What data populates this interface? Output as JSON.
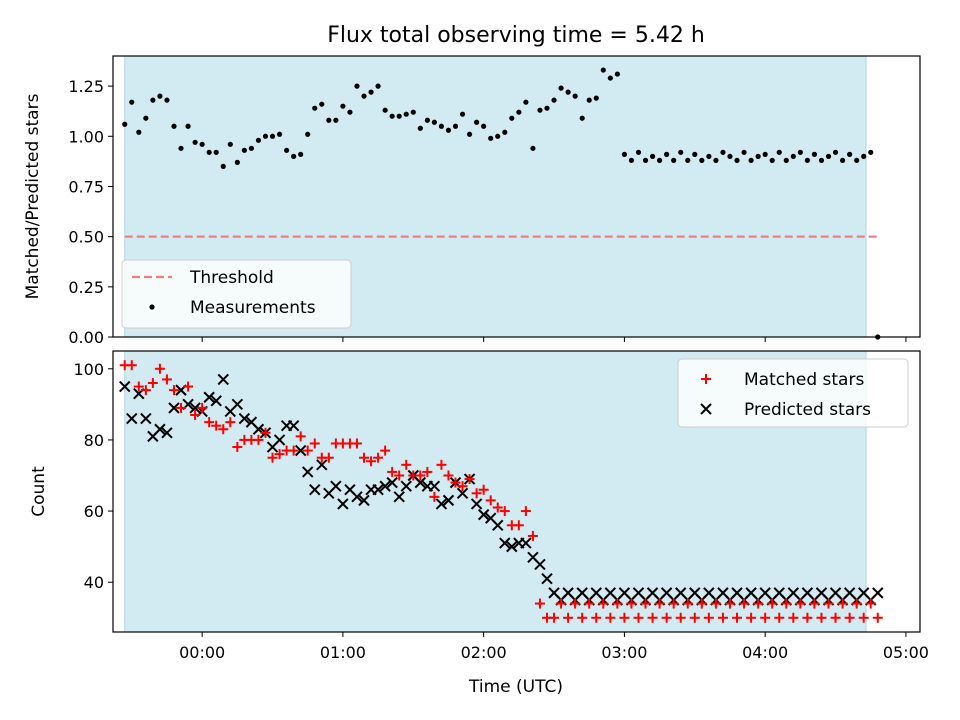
{
  "title": "Flux total observing time = 5.42 h",
  "colors": {
    "shade": "#add8e6",
    "threshold": "#f08080",
    "measurement": "#000000",
    "matched": "#ff0000",
    "predicted": "#000000"
  },
  "chart_data": [
    {
      "type": "scatter",
      "name": "ratio",
      "ylabel": "Matched/Predicted stars",
      "xlabel": "",
      "ylim": [
        0,
        1.4
      ],
      "xlim": [
        "-00:38",
        "05:06"
      ],
      "yticks": [
        "0.00",
        "0.25",
        "0.50",
        "0.75",
        "1.00",
        "1.25"
      ],
      "shaded_span": [
        "-00:33",
        "04:43"
      ],
      "legend": {
        "placement": "lower-left",
        "entries": [
          "Threshold",
          "Measurements"
        ]
      },
      "threshold": {
        "name": "Threshold",
        "value": 0.5,
        "x": [
          "-00:33",
          "04:48"
        ]
      },
      "series": [
        {
          "name": "Measurements",
          "x": [
            "-00:33",
            "-00:30",
            "-00:27",
            "-00:24",
            "-00:21",
            "-00:18",
            "-00:15",
            "-00:12",
            "-00:09",
            "-00:06",
            "-00:03",
            "00:00",
            "00:03",
            "00:06",
            "00:09",
            "00:12",
            "00:15",
            "00:18",
            "00:21",
            "00:24",
            "00:27",
            "00:30",
            "00:33",
            "00:36",
            "00:39",
            "00:42",
            "00:45",
            "00:48",
            "00:51",
            "00:54",
            "00:57",
            "01:00",
            "01:03",
            "01:06",
            "01:09",
            "01:12",
            "01:15",
            "01:18",
            "01:21",
            "01:24",
            "01:27",
            "01:30",
            "01:33",
            "01:36",
            "01:39",
            "01:42",
            "01:45",
            "01:48",
            "01:51",
            "01:54",
            "01:57",
            "02:00",
            "02:03",
            "02:06",
            "02:09",
            "02:12",
            "02:15",
            "02:18",
            "02:21",
            "02:24",
            "02:27",
            "02:30",
            "02:33",
            "02:36",
            "02:39",
            "02:42",
            "02:45",
            "02:48",
            "02:51",
            "02:54",
            "02:57",
            "03:00",
            "03:03",
            "03:06",
            "03:09",
            "03:12",
            "03:15",
            "03:18",
            "03:21",
            "03:24",
            "03:27",
            "03:30",
            "03:33",
            "03:36",
            "03:39",
            "03:42",
            "03:45",
            "03:48",
            "03:51",
            "03:54",
            "03:57",
            "04:00",
            "04:03",
            "04:06",
            "04:09",
            "04:12",
            "04:15",
            "04:18",
            "04:21",
            "04:24",
            "04:27",
            "04:30",
            "04:33",
            "04:36",
            "04:39",
            "04:42",
            "04:45",
            "04:48"
          ],
          "y": [
            1.06,
            1.17,
            1.02,
            1.09,
            1.18,
            1.2,
            1.18,
            1.05,
            0.94,
            1.05,
            0.97,
            0.96,
            0.92,
            0.92,
            0.85,
            0.96,
            0.87,
            0.93,
            0.94,
            0.98,
            1.0,
            1.0,
            1.01,
            0.93,
            0.9,
            0.91,
            1.01,
            1.14,
            1.16,
            1.08,
            1.08,
            1.15,
            1.12,
            1.25,
            1.2,
            1.22,
            1.25,
            1.13,
            1.1,
            1.1,
            1.11,
            1.12,
            1.04,
            1.08,
            1.07,
            1.05,
            1.03,
            1.05,
            1.11,
            1.01,
            1.07,
            1.05,
            0.99,
            1.0,
            1.02,
            1.09,
            1.12,
            1.17,
            0.94,
            1.13,
            1.14,
            1.18,
            1.24,
            1.22,
            1.2,
            1.09,
            1.18,
            1.19,
            1.33,
            1.29,
            1.31,
            0.91,
            0.88,
            0.92,
            0.88,
            0.9,
            0.88,
            0.91,
            0.88,
            0.92,
            0.88,
            0.91,
            0.88,
            0.9,
            0.88,
            0.92,
            0.9,
            0.88,
            0.92,
            0.88,
            0.9,
            0.91,
            0.88,
            0.92,
            0.88,
            0.9,
            0.92,
            0.88,
            0.91,
            0.88,
            0.9,
            0.92,
            0.88,
            0.91,
            0.88,
            0.9,
            0.92,
            0.0
          ]
        }
      ]
    },
    {
      "type": "scatter",
      "name": "counts",
      "ylabel": "Count",
      "xlabel": "Time (UTC)",
      "ylim": [
        26,
        105
      ],
      "xlim": [
        "-00:38",
        "05:06"
      ],
      "yticks": [
        "40",
        "60",
        "80",
        "100"
      ],
      "xticks": [
        "00:00",
        "01:00",
        "02:00",
        "03:00",
        "04:00",
        "05:00"
      ],
      "shaded_span": [
        "-00:33",
        "04:43"
      ],
      "legend": {
        "placement": "upper-right",
        "entries": [
          "Matched stars",
          "Predicted stars"
        ]
      },
      "series": [
        {
          "name": "Matched stars",
          "marker": "plus",
          "x": [
            "-00:33",
            "-00:30",
            "-00:27",
            "-00:24",
            "-00:21",
            "-00:18",
            "-00:15",
            "-00:12",
            "-00:09",
            "-00:06",
            "-00:03",
            "00:00",
            "00:03",
            "00:06",
            "00:09",
            "00:12",
            "00:15",
            "00:18",
            "00:21",
            "00:24",
            "00:27",
            "00:30",
            "00:33",
            "00:36",
            "00:39",
            "00:42",
            "00:45",
            "00:48",
            "00:51",
            "00:54",
            "00:57",
            "01:00",
            "01:03",
            "01:06",
            "01:09",
            "01:12",
            "01:15",
            "01:18",
            "01:21",
            "01:24",
            "01:27",
            "01:30",
            "01:33",
            "01:36",
            "01:39",
            "01:42",
            "01:45",
            "01:48",
            "01:51",
            "01:54",
            "01:57",
            "02:00",
            "02:03",
            "02:06",
            "02:09",
            "02:12",
            "02:15",
            "02:18",
            "02:21",
            "02:24",
            "02:27",
            "02:30",
            "02:33",
            "02:36",
            "02:39",
            "02:42",
            "02:45",
            "02:48",
            "02:51",
            "02:54",
            "02:57",
            "03:00",
            "03:03",
            "03:06",
            "03:09",
            "03:12",
            "03:15",
            "03:18",
            "03:21",
            "03:24",
            "03:27",
            "03:30",
            "03:33",
            "03:36",
            "03:39",
            "03:42",
            "03:45",
            "03:48",
            "03:51",
            "03:54",
            "03:57",
            "04:00",
            "04:03",
            "04:06",
            "04:09",
            "04:12",
            "04:15",
            "04:18",
            "04:21",
            "04:24",
            "04:27",
            "04:30",
            "04:33",
            "04:36",
            "04:39",
            "04:42",
            "04:45",
            "04:48"
          ],
          "y": [
            101,
            101,
            95,
            94,
            96,
            100,
            97,
            94,
            89,
            95,
            87,
            89,
            85,
            84,
            83,
            85,
            78,
            80,
            80,
            80,
            82,
            75,
            76,
            77,
            77,
            81,
            77,
            79,
            75,
            75,
            79,
            79,
            79,
            79,
            75,
            74,
            75,
            77,
            71,
            70,
            73,
            70,
            70,
            71,
            64,
            73,
            70,
            68,
            67,
            69,
            65,
            66,
            63,
            61,
            60,
            56,
            56,
            60,
            53,
            34,
            30,
            30,
            34,
            30,
            34,
            30,
            34,
            30,
            34,
            30,
            34,
            30,
            34,
            30,
            34,
            30,
            34,
            30,
            34,
            30,
            34,
            30,
            34,
            30,
            34,
            30,
            34,
            30,
            34,
            30,
            34,
            30,
            34,
            30,
            34,
            30,
            34,
            30,
            34,
            30,
            34,
            30,
            34,
            30,
            34,
            30,
            34,
            30
          ]
        },
        {
          "name": "Predicted stars",
          "marker": "x",
          "x": [
            "-00:33",
            "-00:30",
            "-00:27",
            "-00:24",
            "-00:21",
            "-00:18",
            "-00:15",
            "-00:12",
            "-00:09",
            "-00:06",
            "-00:03",
            "00:00",
            "00:03",
            "00:06",
            "00:09",
            "00:12",
            "00:15",
            "00:18",
            "00:21",
            "00:24",
            "00:27",
            "00:30",
            "00:33",
            "00:36",
            "00:39",
            "00:42",
            "00:45",
            "00:48",
            "00:51",
            "00:54",
            "00:57",
            "01:00",
            "01:03",
            "01:06",
            "01:09",
            "01:12",
            "01:15",
            "01:18",
            "01:21",
            "01:24",
            "01:27",
            "01:30",
            "01:33",
            "01:36",
            "01:39",
            "01:42",
            "01:45",
            "01:48",
            "01:51",
            "01:54",
            "01:57",
            "02:00",
            "02:03",
            "02:06",
            "02:09",
            "02:12",
            "02:15",
            "02:18",
            "02:21",
            "02:24",
            "02:27",
            "02:30",
            "02:33",
            "02:36",
            "02:39",
            "02:42",
            "02:45",
            "02:48",
            "02:51",
            "02:54",
            "02:57",
            "03:00",
            "03:03",
            "03:06",
            "03:09",
            "03:12",
            "03:15",
            "03:18",
            "03:21",
            "03:24",
            "03:27",
            "03:30",
            "03:33",
            "03:36",
            "03:39",
            "03:42",
            "03:45",
            "03:48",
            "03:51",
            "03:54",
            "03:57",
            "04:00",
            "04:03",
            "04:06",
            "04:09",
            "04:12",
            "04:15",
            "04:18",
            "04:21",
            "04:24",
            "04:27",
            "04:30",
            "04:33",
            "04:36",
            "04:39",
            "04:42",
            "04:45",
            "04:48"
          ],
          "y": [
            95,
            86,
            93,
            86,
            81,
            83,
            82,
            89,
            94,
            90,
            89,
            88,
            92,
            91,
            97,
            88,
            90,
            86,
            85,
            83,
            82,
            78,
            80,
            84,
            84,
            77,
            71,
            66,
            73,
            65,
            67,
            62,
            66,
            64,
            63,
            66,
            66,
            67,
            68,
            64,
            67,
            70,
            68,
            67,
            67,
            62,
            63,
            68,
            65,
            69,
            62,
            59,
            58,
            56,
            51,
            50,
            51,
            51,
            47,
            45,
            41,
            37,
            35,
            37,
            35,
            37,
            35,
            37,
            35,
            37,
            35,
            37,
            35,
            37,
            35,
            37,
            35,
            37,
            35,
            37,
            35,
            37,
            35,
            37,
            35,
            37,
            35,
            37,
            35,
            37,
            35,
            37,
            35,
            37,
            35,
            37,
            35,
            37,
            35,
            37,
            35,
            37,
            35,
            37,
            35,
            37,
            35,
            37
          ]
        }
      ]
    }
  ]
}
